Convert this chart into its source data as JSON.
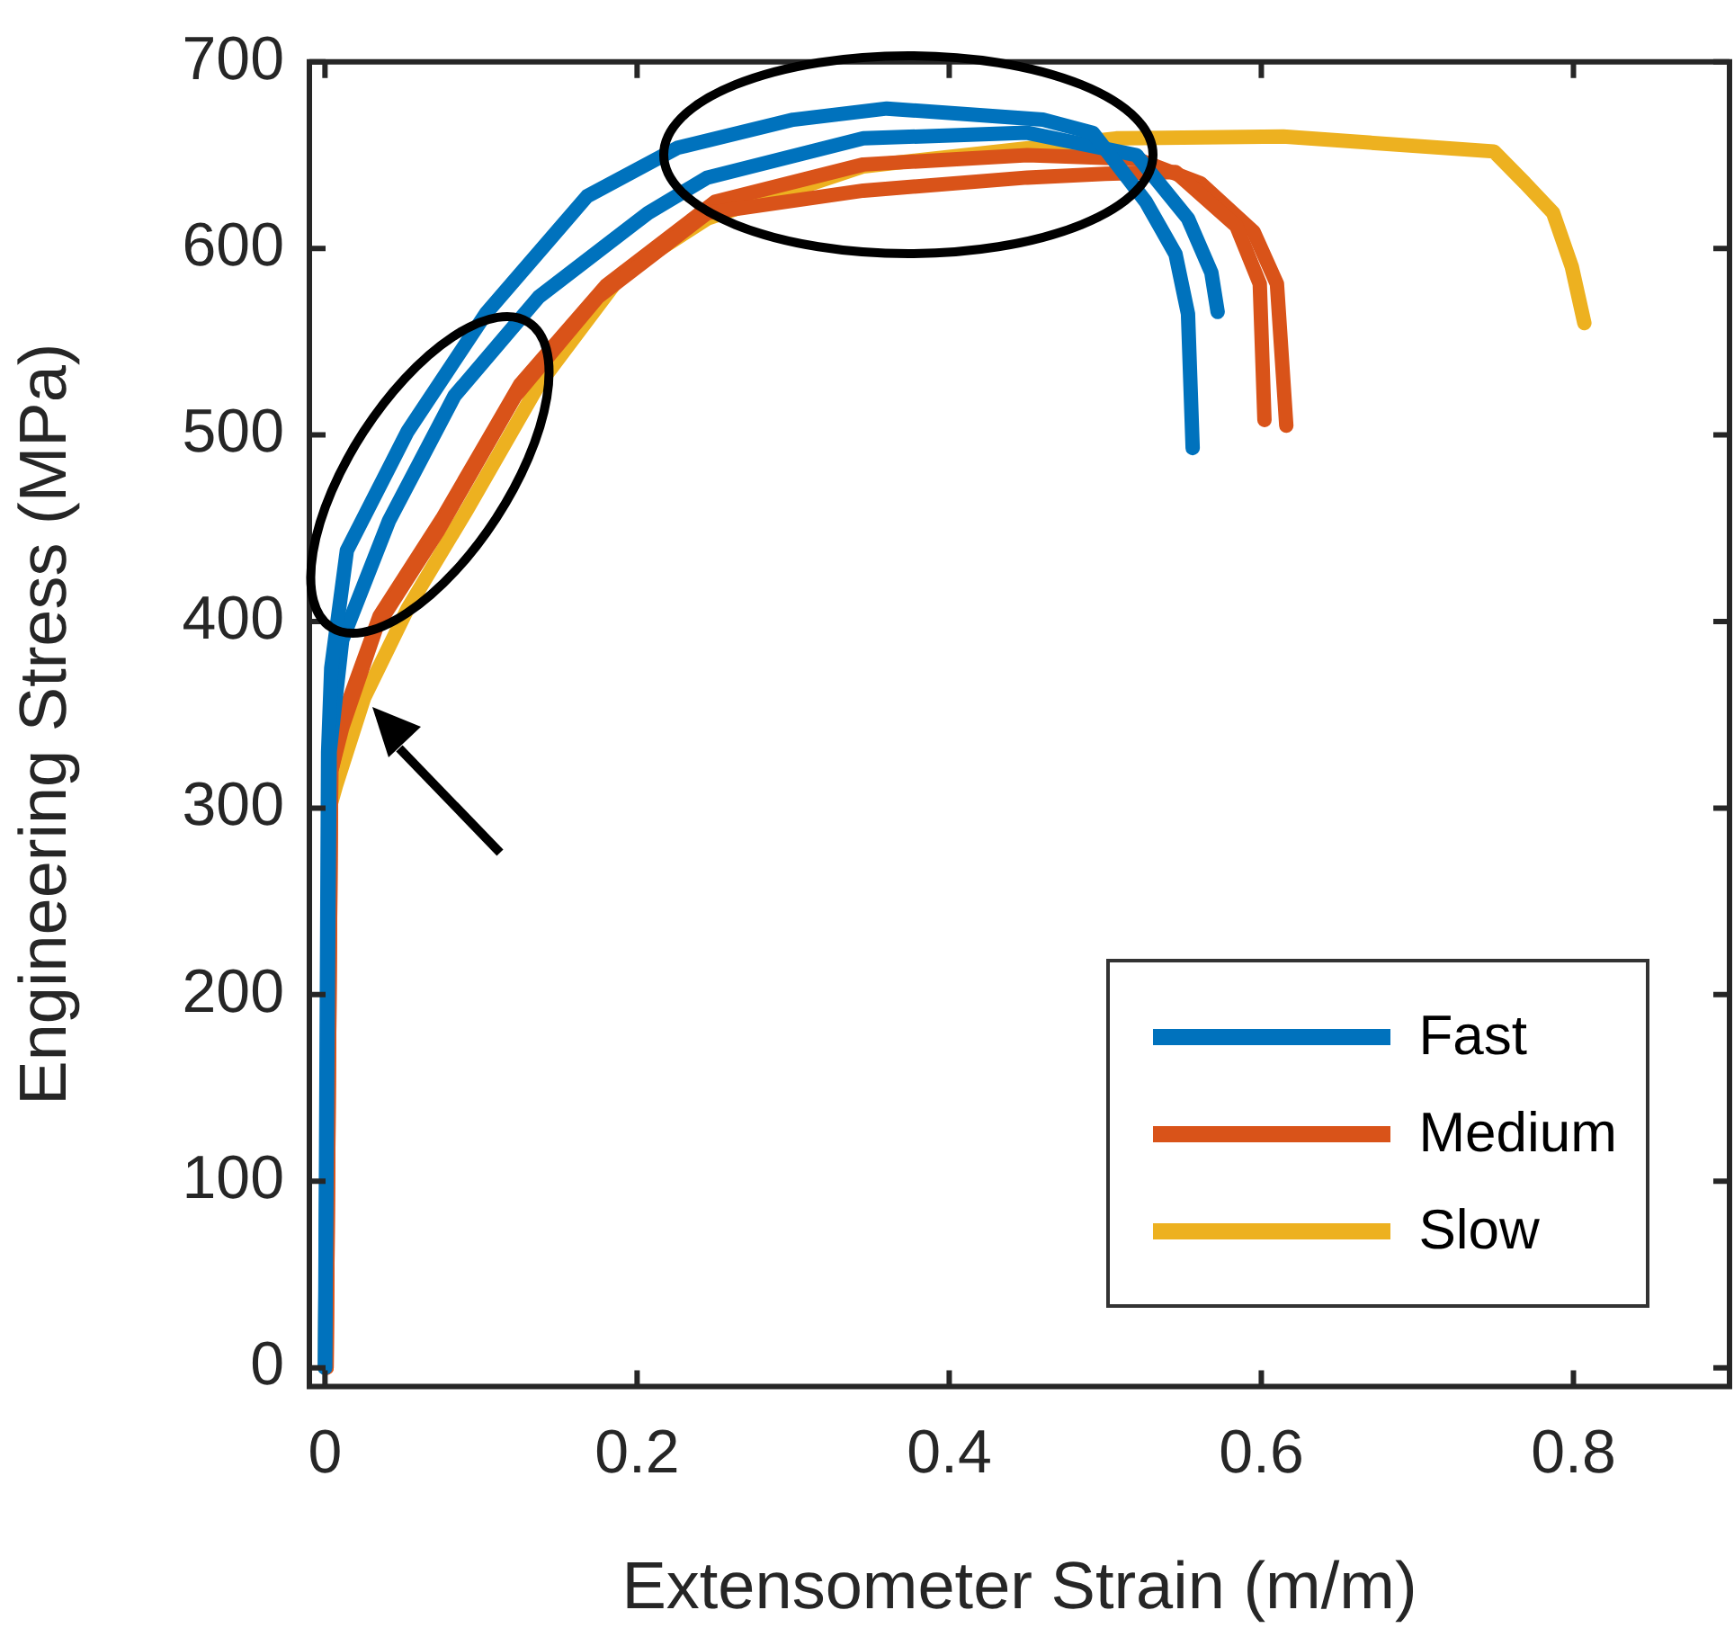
{
  "chart_data": {
    "type": "line",
    "xlabel": "Extensometer Strain (m/m)",
    "ylabel": "Engineering Stress (MPa)",
    "xlim": [
      -0.01,
      0.9
    ],
    "xticks": [
      0,
      0.2,
      0.4,
      0.6,
      0.8
    ],
    "ylim": [
      -10,
      700
    ],
    "yticks": [
      0,
      100,
      200,
      300,
      400,
      500,
      600,
      700
    ],
    "grid": false,
    "legend": "bottom right",
    "marker": "none",
    "line_style": "solid",
    "series": [
      {
        "name": "Fast",
        "color": "#0072bd",
        "x": [
          0,
          0.002,
          0.004,
          0.014,
          0.053,
          0.103,
          0.168,
          0.226,
          0.3,
          0.36,
          0.46,
          0.492,
          0.526,
          0.545,
          0.553,
          0.556
        ],
        "values": [
          0,
          330,
          375,
          438,
          502,
          565,
          628,
          654,
          669,
          675,
          669,
          662,
          625,
          597,
          565,
          493
        ]
      },
      {
        "color": "#0072bd",
        "x": [
          0,
          0.003,
          0.011,
          0.041,
          0.083,
          0.137,
          0.207,
          0.245,
          0.345,
          0.45,
          0.52,
          0.553,
          0.568,
          0.572
        ],
        "values": [
          0,
          330,
          390,
          454,
          521,
          574,
          619,
          638,
          659,
          662,
          650,
          616,
          587,
          566
        ]
      },
      {
        "name": "Medium",
        "color": "#d95319",
        "x": [
          0.001,
          0.004,
          0.011,
          0.033,
          0.072,
          0.122,
          0.175,
          0.245,
          0.345,
          0.45,
          0.5,
          0.545,
          0.584,
          0.599,
          0.602
        ],
        "values": [
          0,
          320,
          343,
          397,
          448,
          521,
          574,
          619,
          631,
          638,
          640,
          641,
          612,
          581,
          508
        ]
      },
      {
        "color": "#d95319",
        "x": [
          0.001,
          0.004,
          0.012,
          0.035,
          0.075,
          0.125,
          0.18,
          0.25,
          0.345,
          0.45,
          0.52,
          0.561,
          0.595,
          0.61,
          0.616
        ],
        "values": [
          0,
          320,
          350,
          403,
          455,
          527,
          580,
          625,
          645,
          650,
          648,
          635,
          609,
          581,
          505
        ]
      },
      {
        "name": "Slow",
        "color": "#edb120",
        "x": [
          0,
          0.003,
          0.007,
          0.025,
          0.053,
          0.091,
          0.137,
          0.191,
          0.245,
          0.345,
          0.507,
          0.614,
          0.749,
          0.769,
          0.787,
          0.799,
          0.807
        ],
        "values": [
          0,
          300,
          312,
          359,
          407,
          460,
          527,
          587,
          616,
          644,
          659,
          660,
          652,
          635,
          619,
          590,
          560
        ]
      }
    ]
  }
}
